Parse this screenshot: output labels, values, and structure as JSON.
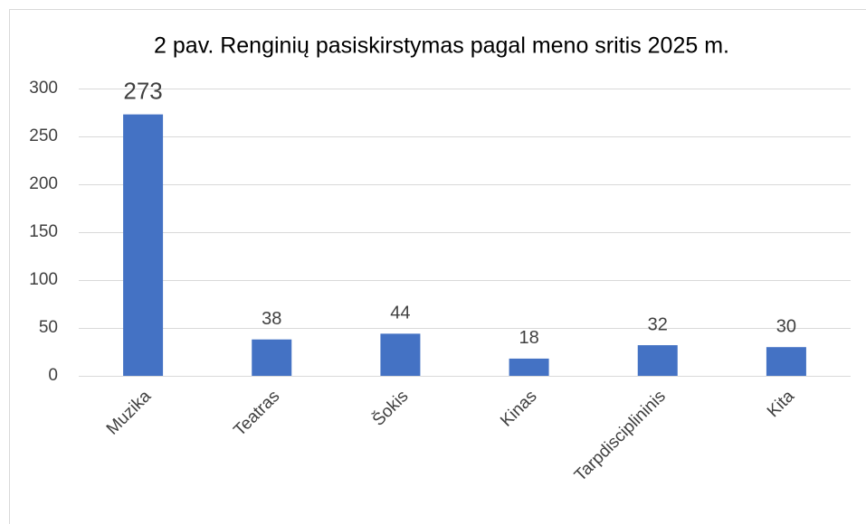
{
  "chart_data": {
    "type": "bar",
    "title": "2 pav. Renginių pasiskirstymas pagal meno sritis 2025 m.",
    "categories": [
      "Muzika",
      "Teatras",
      "Šokis",
      "Kinas",
      "Tarpdisciplininis",
      "Kita"
    ],
    "values": [
      273,
      38,
      44,
      18,
      32,
      30
    ],
    "color": "#4472c4",
    "ylim": [
      0,
      300
    ],
    "yticks": [
      0,
      50,
      100,
      150,
      200,
      250,
      300
    ],
    "grid": true
  }
}
